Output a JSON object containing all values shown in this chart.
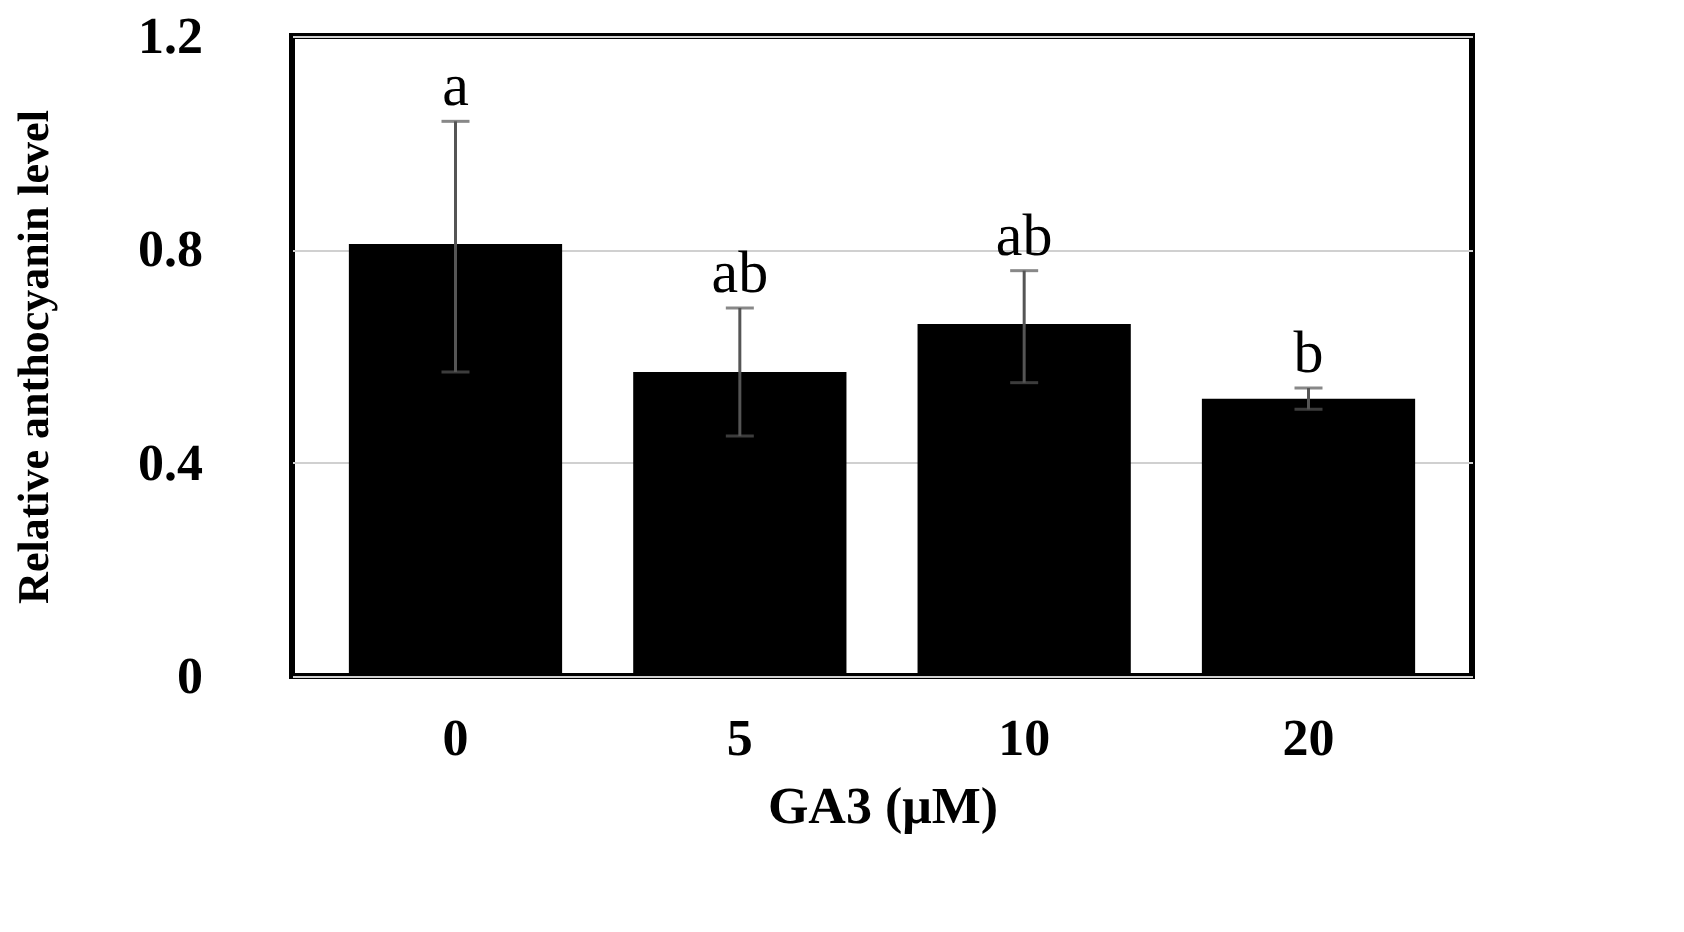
{
  "chart_data": {
    "type": "bar",
    "xlabel": "GA3 (μM)",
    "ylabel": "Relative anthocyanin level",
    "categories": [
      "0",
      "5",
      "10",
      "20"
    ],
    "values": [
      0.81,
      0.57,
      0.66,
      0.52
    ],
    "errors": [
      [
        0.57,
        1.04
      ],
      [
        0.45,
        0.69
      ],
      [
        0.55,
        0.76
      ],
      [
        0.5,
        0.54
      ]
    ],
    "color": "#000000",
    "ylim": [
      0,
      1.2
    ],
    "yticks": [
      0,
      0.4,
      0.8,
      1.2
    ],
    "grid": "y",
    "annotations": [
      {
        "text": "a",
        "x": "0",
        "y": 1.04
      },
      {
        "text": "ab",
        "x": "5",
        "y": 0.69
      },
      {
        "text": "ab",
        "x": "10",
        "y": 0.76
      },
      {
        "text": "b",
        "x": "20",
        "y": 0.54
      }
    ]
  }
}
